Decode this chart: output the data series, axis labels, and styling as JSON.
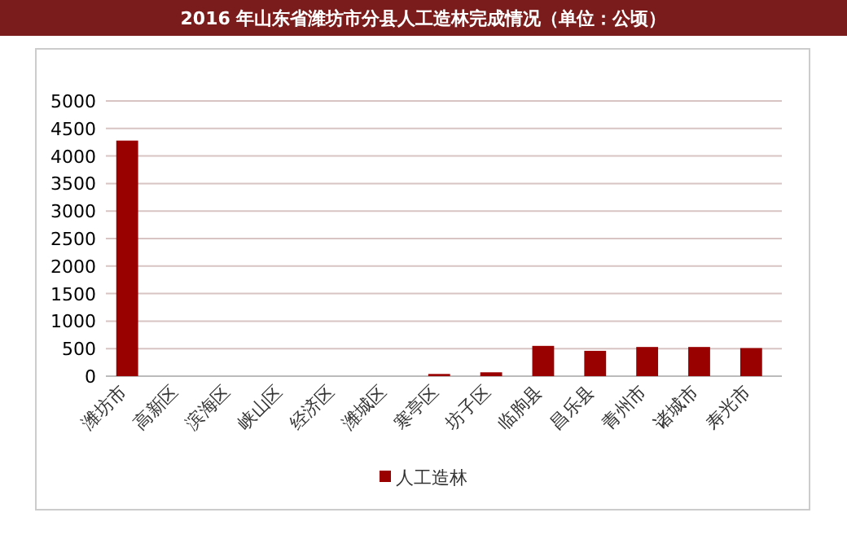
{
  "chart_data": {
    "type": "bar",
    "title": "2016 年山东省潍坊市分县人工造林完成情况（单位：公顷）",
    "categories": [
      "潍坊市",
      "高新区",
      "滨海区",
      "峡山区",
      "经济区",
      "潍城区",
      "寒亭区",
      "坊子区",
      "临朐县",
      "昌乐县",
      "青州市",
      "诸城市",
      "寿光市"
    ],
    "series": [
      {
        "name": "人工造林",
        "color": "#990000",
        "values": [
          4280,
          0,
          0,
          0,
          0,
          0,
          40,
          70,
          550,
          460,
          530,
          530,
          510
        ]
      }
    ],
    "ylim": [
      0,
      5000
    ],
    "yticks": [
      0,
      500,
      1000,
      1500,
      2000,
      2500,
      3000,
      3500,
      4000,
      4500,
      5000
    ],
    "grid": "y",
    "legend": "bottom"
  }
}
